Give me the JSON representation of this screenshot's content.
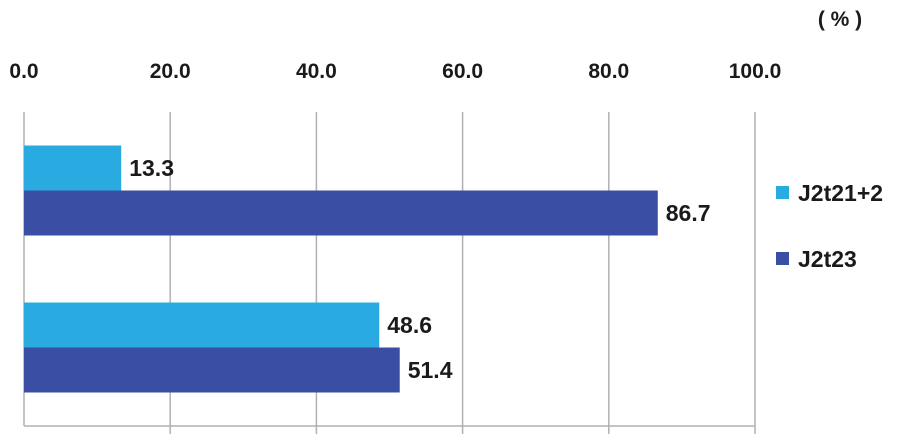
{
  "chart_data": {
    "type": "bar",
    "orientation": "horizontal",
    "unit": "( % )",
    "title": "",
    "xlabel": "",
    "ylabel": "",
    "xlim": [
      0,
      100
    ],
    "ticks": [
      "0.0",
      "20.0",
      "40.0",
      "60.0",
      "80.0",
      "100.0"
    ],
    "tick_values": [
      0,
      20,
      40,
      60,
      80,
      100
    ],
    "grid": "vertical",
    "categories": [
      "",
      ""
    ],
    "series": [
      {
        "name": "J2t21+2",
        "color": "#29abe2",
        "values": [
          13.3,
          48.6
        ],
        "labels": [
          "13.3",
          "48.6"
        ]
      },
      {
        "name": "J2t23",
        "color": "#3a4fa3",
        "values": [
          86.7,
          51.4
        ],
        "labels": [
          "86.7",
          "51.4"
        ]
      }
    ],
    "legend_position": "right"
  }
}
